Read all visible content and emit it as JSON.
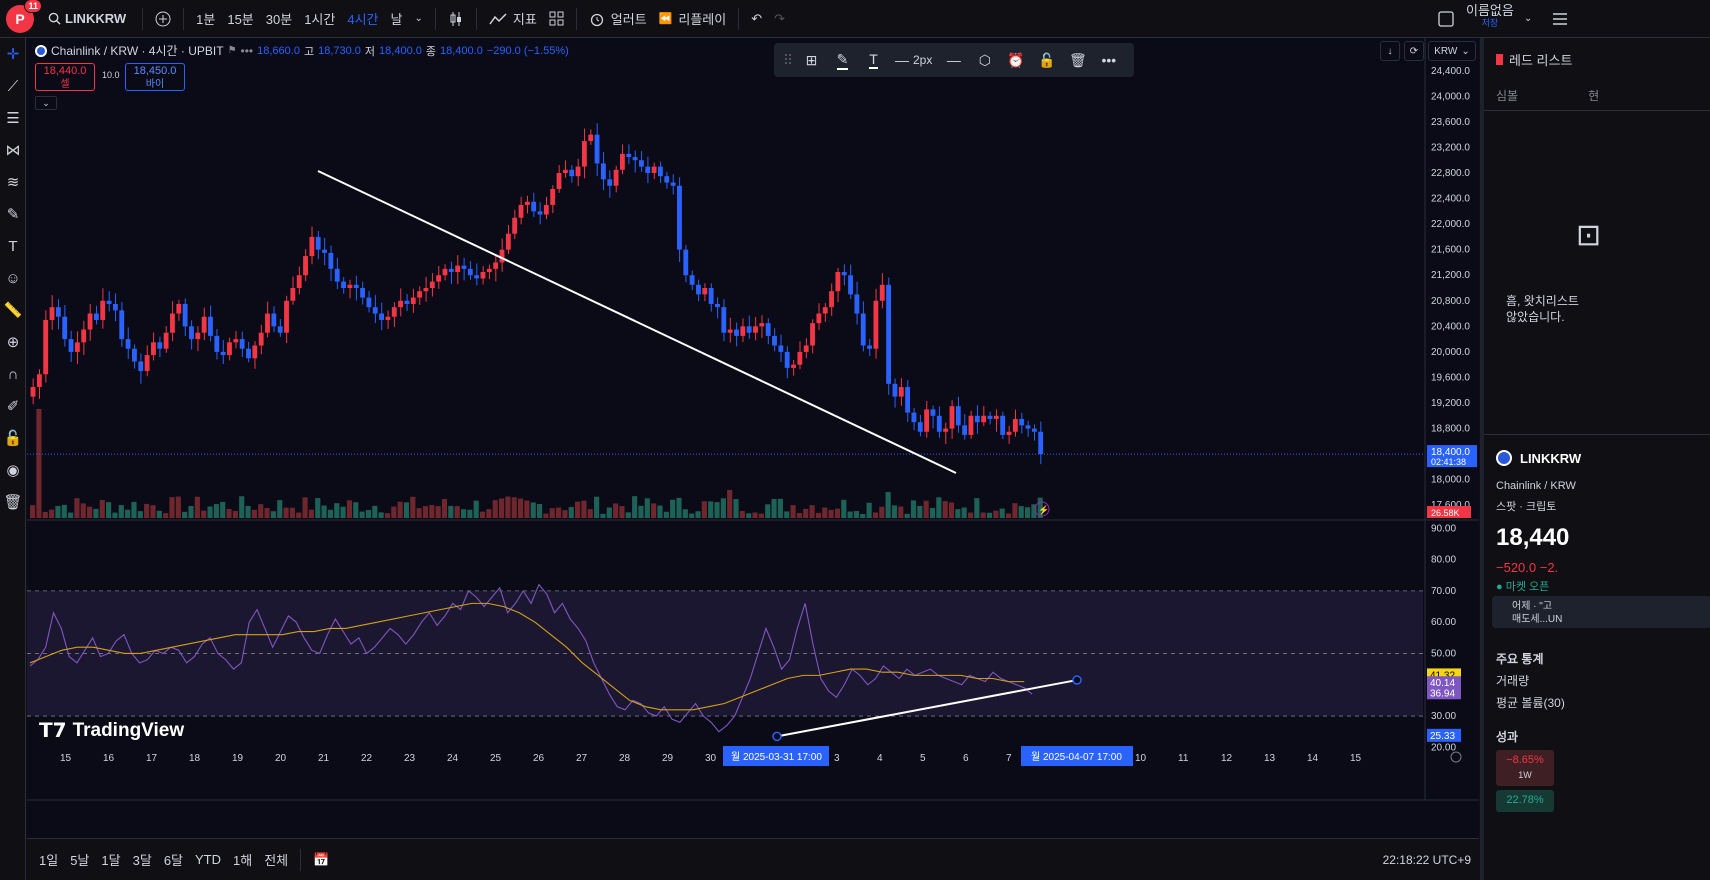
{
  "topbar": {
    "avatar_letter": "P",
    "notif_count": "11",
    "symbol": "LINKKRW",
    "intervals": [
      "1분",
      "15분",
      "30분",
      "1시간",
      "4시간",
      "날"
    ],
    "active_interval": "4시간",
    "indicators_label": "지표",
    "alert_label": "얼러트",
    "replay_label": "리플레이",
    "unnamed_label": "이름없음",
    "save_label": "저장"
  },
  "legend": {
    "symbol": "Chainlink / KRW · 4시간 · UPBIT",
    "open": "18,660.0",
    "high_label": "고",
    "high": "18,730.0",
    "low_label": "저",
    "low": "18,400.0",
    "close_label": "종",
    "close": "18,400.0",
    "change": "−290.0 (−1.55%)",
    "sell_price": "18,440.0",
    "sell_label": "셀",
    "spread": "10.0",
    "buy_price": "18,450.0",
    "buy_label": "바이"
  },
  "drawbar": {
    "width_label": "2px"
  },
  "chart_controls": {
    "currency": "KRW"
  },
  "colors": {
    "up": "#f23645",
    "down": "#2962ff",
    "volume_up": "#1f6b5e",
    "volume_down": "#7a2a30",
    "rsi": "#7e57c2",
    "rsi_ma": "#d4a017",
    "trendline": "#ffffff"
  },
  "chart_data": {
    "type": "candlestick",
    "symbol": "Chainlink / KRW",
    "price_axis": [
      "24,400.0",
      "24,000.0",
      "23,600.0",
      "23,200.0",
      "22,800.0",
      "22,400.0",
      "22,000.0",
      "21,600.0",
      "21,200.0",
      "20,800.0",
      "20,400.0",
      "20,000.0",
      "19,600.0",
      "19,200.0",
      "18,800.0",
      "18,000.0",
      "17,600.0"
    ],
    "price_range": [
      17400,
      24600
    ],
    "last_price": "18,400.0",
    "countdown": "02:41:38",
    "volume_label": "26.58K",
    "x_axis": [
      "15",
      "16",
      "17",
      "18",
      "19",
      "20",
      "21",
      "22",
      "23",
      "24",
      "25",
      "26",
      "27",
      "28",
      "29",
      "30",
      "31",
      "2",
      "3",
      "4",
      "5",
      "6",
      "7",
      "8",
      "9",
      "10",
      "11",
      "12",
      "13",
      "14",
      "15"
    ],
    "x_highlight_1": "월 2025-03-31   17:00",
    "x_highlight_2": "월 2025-04-07   17:00",
    "close_series": [
      19450,
      19650,
      20500,
      20700,
      20550,
      20200,
      20000,
      20150,
      20350,
      20600,
      20500,
      20800,
      20750,
      20650,
      20200,
      20050,
      19850,
      19700,
      19950,
      20150,
      20050,
      20300,
      20600,
      20750,
      20400,
      20200,
      20300,
      20550,
      20250,
      20000,
      19950,
      20150,
      20200,
      20050,
      19900,
      20100,
      20300,
      20600,
      20400,
      20300,
      20800,
      21000,
      21200,
      21500,
      21800,
      21600,
      21550,
      21300,
      21100,
      21000,
      21050,
      21000,
      20850,
      20700,
      20600,
      20500,
      20550,
      20700,
      20800,
      20750,
      20850,
      20950,
      21000,
      21100,
      21200,
      21300,
      21250,
      21350,
      21300,
      21200,
      21150,
      21250,
      21300,
      21400,
      21600,
      21850,
      22100,
      22300,
      22350,
      22200,
      22150,
      22300,
      22550,
      22800,
      22850,
      22750,
      22900,
      23300,
      23400,
      22950,
      22700,
      22600,
      22850,
      23100,
      23050,
      23000,
      22900,
      22800,
      22900,
      22750,
      22650,
      22600,
      21600,
      21200,
      21050,
      20900,
      21000,
      20750,
      20700,
      20300,
      20350,
      20250,
      20400,
      20300,
      20400,
      20450,
      20250,
      20100,
      20000,
      19750,
      19800,
      20000,
      20100,
      20450,
      20600,
      20700,
      20950,
      21250,
      21200,
      20900,
      20600,
      20100,
      20050,
      20800,
      21050,
      19500,
      19300,
      19450,
      19050,
      18900,
      18750,
      19100,
      19000,
      18750,
      18800,
      19150,
      18850,
      18700,
      19000,
      18900,
      19000,
      18950,
      19000,
      18700,
      18750,
      18950,
      18850,
      18800,
      18750,
      18400
    ],
    "rsi_axis": [
      "90.00",
      "80.00",
      "70.00",
      "60.00",
      "50.00",
      "40.00",
      "30.00",
      "20.00"
    ],
    "rsi_range": [
      15,
      92
    ],
    "rsi_levels": [
      70,
      50,
      30
    ],
    "rsi_labels": {
      "ma": "41.32",
      "a": "40.14",
      "rsi": "36.94",
      "low": "25.33"
    },
    "series": [
      {
        "name": "RSI",
        "values": [
          46,
          48,
          52,
          63,
          58,
          49,
          47,
          51,
          55,
          49,
          50,
          54,
          56,
          50,
          47,
          48,
          51,
          50,
          52,
          51,
          47,
          49,
          53,
          55,
          50,
          48,
          45,
          47,
          60,
          64,
          58,
          52,
          57,
          62,
          60,
          55,
          51,
          50,
          56,
          61,
          57,
          53,
          55,
          50,
          52,
          55,
          58,
          56,
          53,
          56,
          60,
          63,
          59,
          62,
          66,
          64,
          70,
          68,
          65,
          68,
          71,
          63,
          66,
          70,
          66,
          72,
          69,
          63,
          66,
          61,
          58,
          54,
          47,
          42,
          37,
          33,
          32,
          35,
          34,
          31,
          30,
          33,
          29,
          28,
          31,
          34,
          30,
          28,
          25,
          27,
          30,
          36,
          42,
          50,
          58,
          52,
          45,
          48,
          58,
          66,
          53,
          42,
          38,
          36,
          40,
          45,
          43,
          40,
          42,
          46,
          44,
          42,
          45,
          43,
          44,
          45,
          43,
          42,
          41,
          40,
          43,
          42,
          41,
          44,
          42,
          41,
          40,
          39,
          37
        ],
        "x_start": 0
      },
      {
        "name": "RSI MA",
        "values": [
          47,
          49,
          51,
          52,
          52,
          51,
          50,
          50,
          51,
          52,
          53,
          54,
          55,
          56,
          56,
          56,
          56,
          57,
          57,
          58,
          58,
          59,
          60,
          61,
          62,
          63,
          64,
          65,
          66,
          66,
          65,
          63,
          60,
          56,
          52,
          47,
          43,
          39,
          35,
          33,
          32,
          32,
          32,
          33,
          34,
          36,
          38,
          40,
          42,
          43,
          43,
          44,
          45,
          45,
          44,
          44,
          43,
          43,
          43,
          43,
          42,
          42,
          41,
          41
        ]
      }
    ]
  },
  "bottombar": {
    "ranges": [
      "1일",
      "5날",
      "1달",
      "3달",
      "6달",
      "YTD",
      "1해",
      "전체"
    ],
    "clock": "22:18:22 UTC+9"
  },
  "brand": {
    "name": "TradingView"
  },
  "rightpanel": {
    "header": "레드 리스트",
    "col_symbol": "심볼",
    "col_other": "현",
    "empty_text_1": "흠, 왓치리스트",
    "empty_text_2": "않았습니다.",
    "symbol": "LINKKRW",
    "pair": "Chainlink / KRW",
    "type": "스팟 · 크립토",
    "price": "18,440",
    "change": "−520.0  −2.",
    "market": "● 마켓 오픈",
    "news_1": "어제 · \"고",
    "news_2": "매도세...UN",
    "key_stats": "주요 통계",
    "volume": "거래량",
    "avg_volume": "평균 볼륨(30)",
    "performance": "성과",
    "perf_1w": "−8.65%",
    "perf_1w_label": "1W",
    "perf_other": "22.78%"
  }
}
